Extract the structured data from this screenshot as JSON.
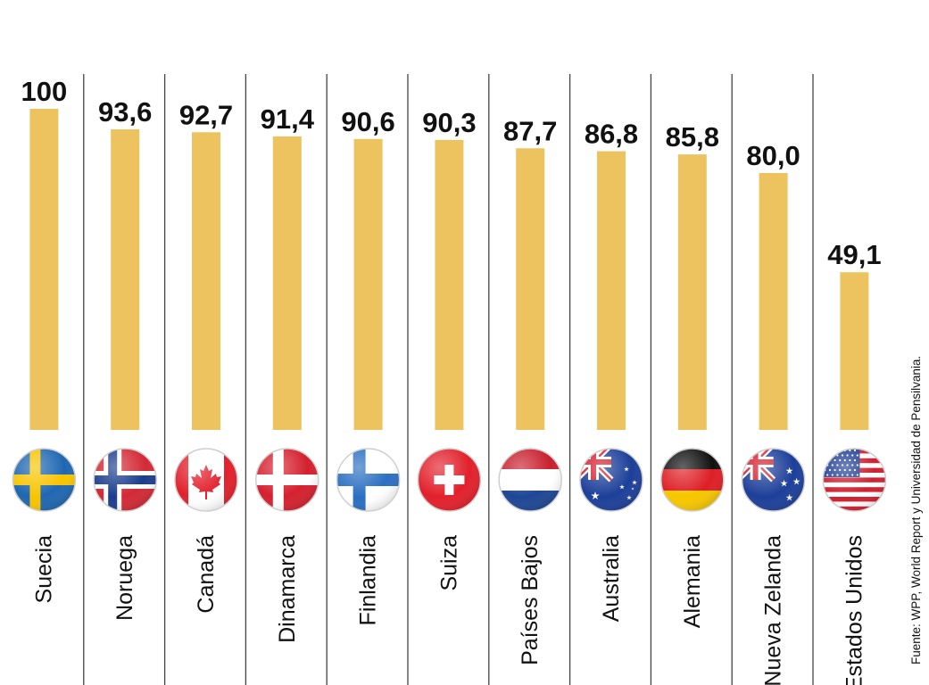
{
  "chart_data": {
    "type": "bar",
    "categories": [
      "Suecia",
      "Noruega",
      "Canadá",
      "Dinamarca",
      "Finlandia",
      "Suiza",
      "Países Bajos",
      "Australia",
      "Alemania",
      "Nueva Zelanda",
      "Estados Unidos"
    ],
    "values": [
      100,
      93.6,
      92.7,
      91.4,
      90.6,
      90.3,
      87.7,
      86.8,
      85.8,
      80.0,
      49.1
    ],
    "value_labels": [
      "100",
      "93,6",
      "92,7",
      "91,4",
      "90,6",
      "90,3",
      "87,7",
      "86,8",
      "85,8",
      "80,0",
      "49,1"
    ],
    "flags": [
      "sweden-flag",
      "norway-flag",
      "canada-flag",
      "denmark-flag",
      "finland-flag",
      "switzerland-flag",
      "netherlands-flag",
      "australia-flag",
      "germany-flag",
      "new-zealand-flag",
      "usa-flag"
    ],
    "title": "",
    "xlabel": "",
    "ylabel": "",
    "ylim": [
      0,
      100
    ],
    "grid": false,
    "bar_color": "#ecc35f",
    "separator_color": "#444444"
  },
  "source": "Fuente: WPP, World Report y Universidad de Pensilvania."
}
